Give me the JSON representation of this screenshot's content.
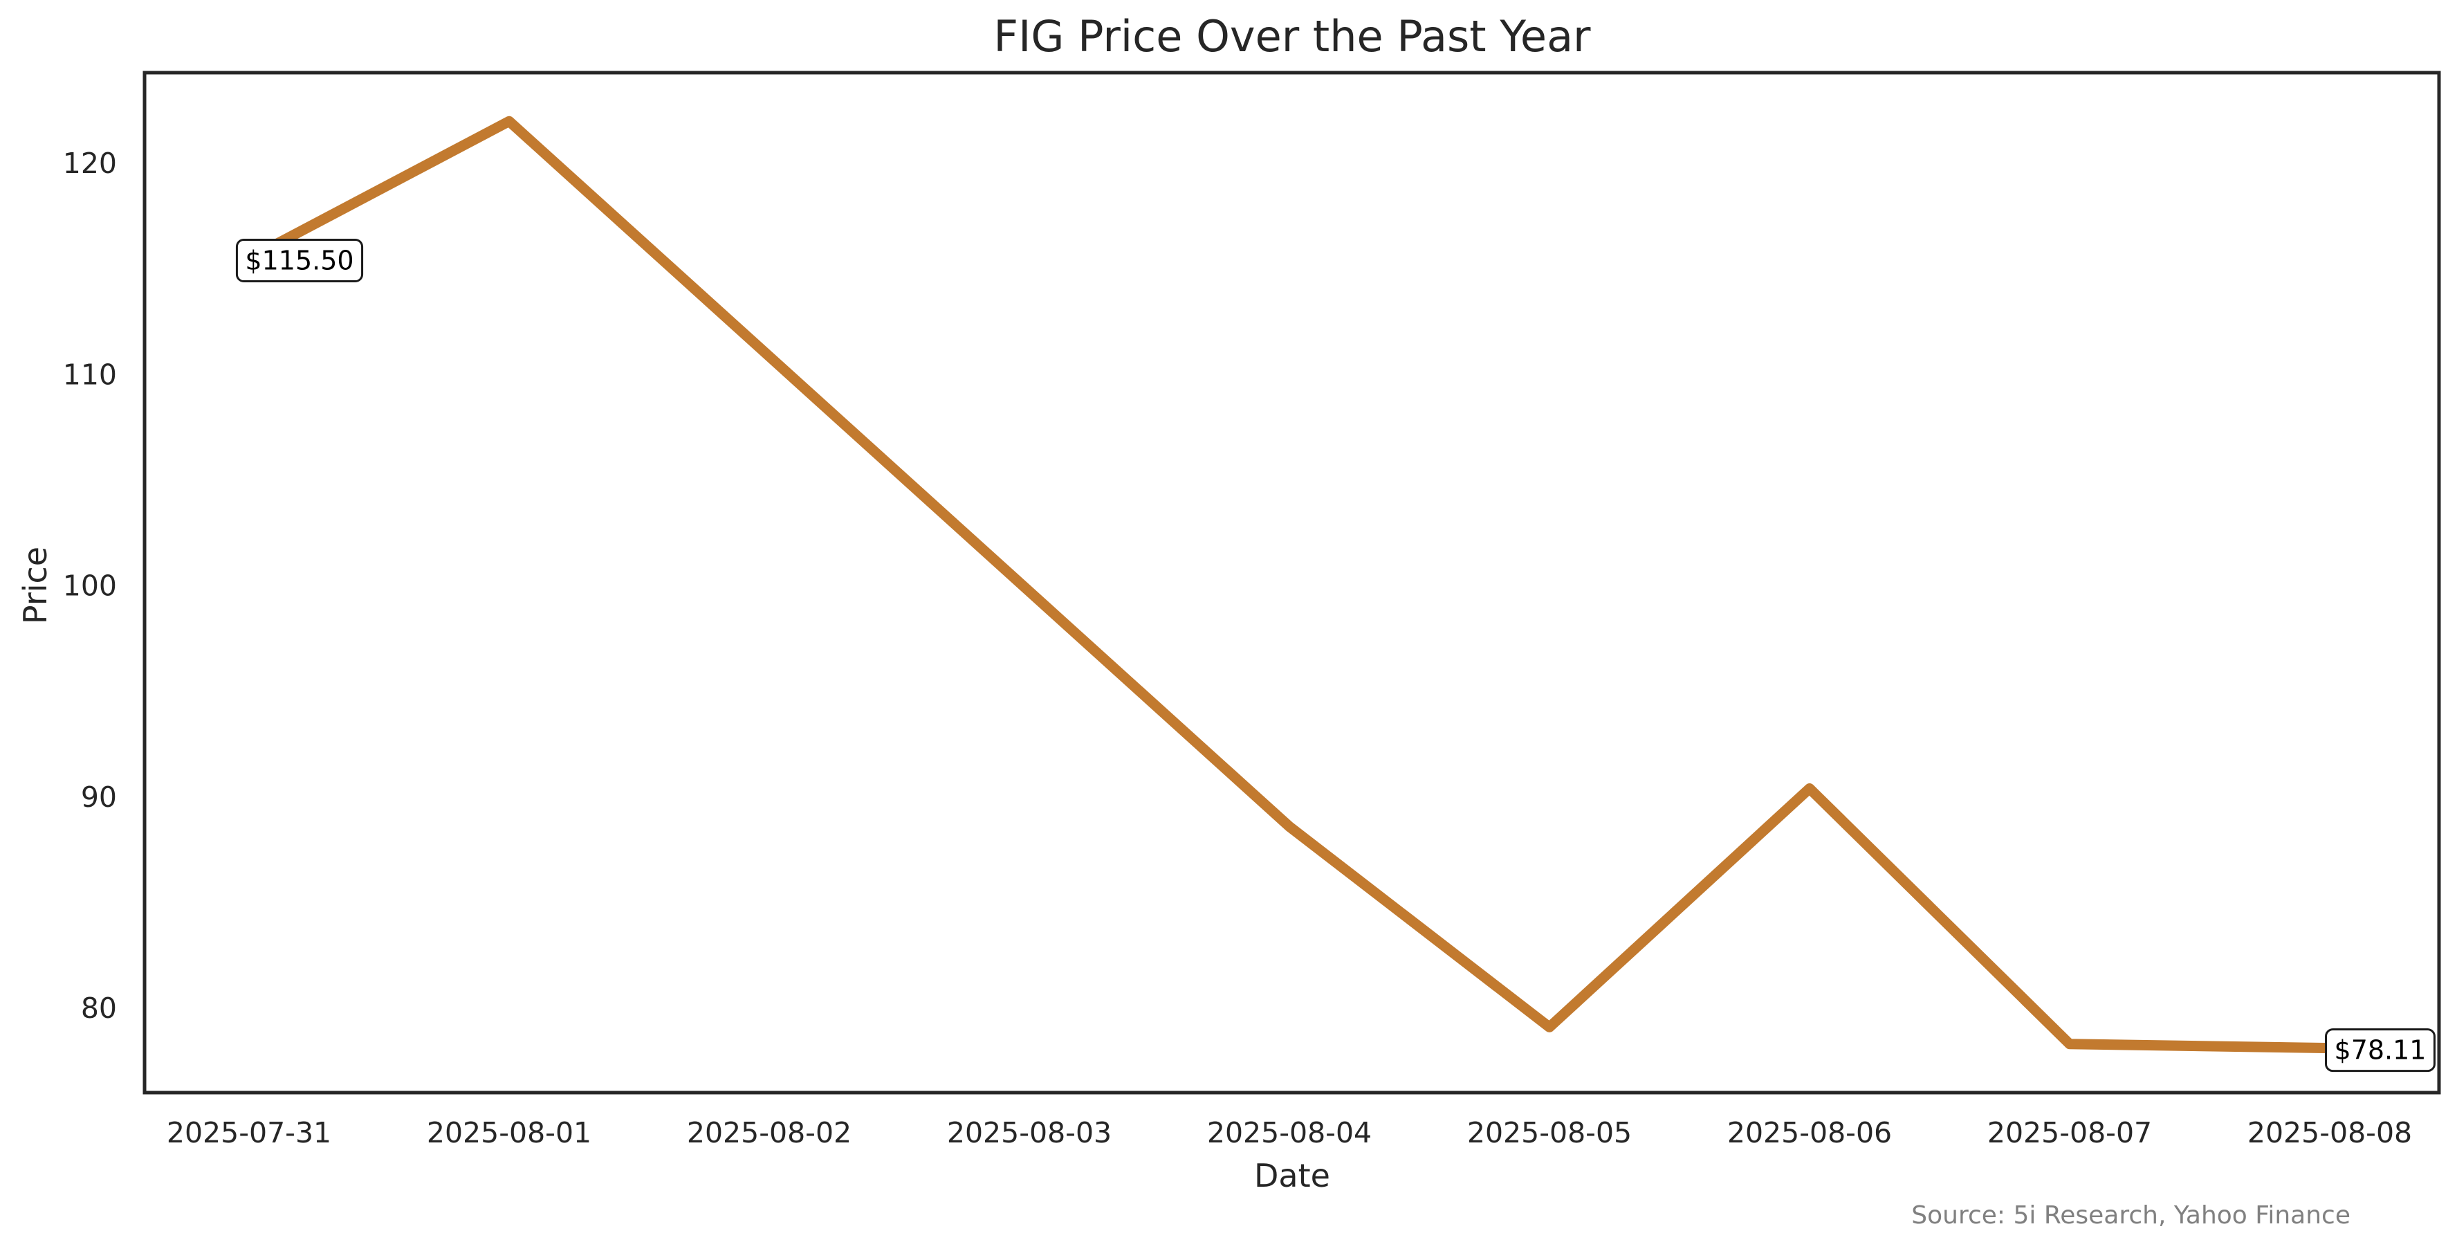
{
  "chart_data": {
    "type": "line",
    "title": "FIG Price Over the Past Year",
    "xlabel": "Date",
    "ylabel": "Price",
    "x_ticks": [
      "2025-07-31",
      "2025-08-01",
      "2025-08-02",
      "2025-08-03",
      "2025-08-04",
      "2025-08-05",
      "2025-08-06",
      "2025-08-07",
      "2025-08-08"
    ],
    "y_ticks": [
      80,
      90,
      100,
      110,
      120
    ],
    "xlim": [
      "2025-07-31",
      "2025-08-08"
    ],
    "ylim": [
      76,
      124.3
    ],
    "grid": false,
    "series": [
      {
        "color": "#c27a2f",
        "points": [
          {
            "x": "2025-07-31",
            "y": 115.5
          },
          {
            "x": "2025-08-01",
            "y": 122.0
          },
          {
            "x": "2025-08-04",
            "y": 88.6
          },
          {
            "x": "2025-08-05",
            "y": 79.1
          },
          {
            "x": "2025-08-06",
            "y": 90.4
          },
          {
            "x": "2025-08-07",
            "y": 78.3
          },
          {
            "x": "2025-08-08",
            "y": 78.11
          }
        ]
      }
    ],
    "annotations": [
      {
        "text": "$115.50",
        "x": "2025-07-31",
        "y": 115.5
      },
      {
        "text": "$78.11",
        "x": "2025-08-08",
        "y": 78.11
      }
    ]
  },
  "source_note": "Source: 5i Research, Yahoo Finance"
}
